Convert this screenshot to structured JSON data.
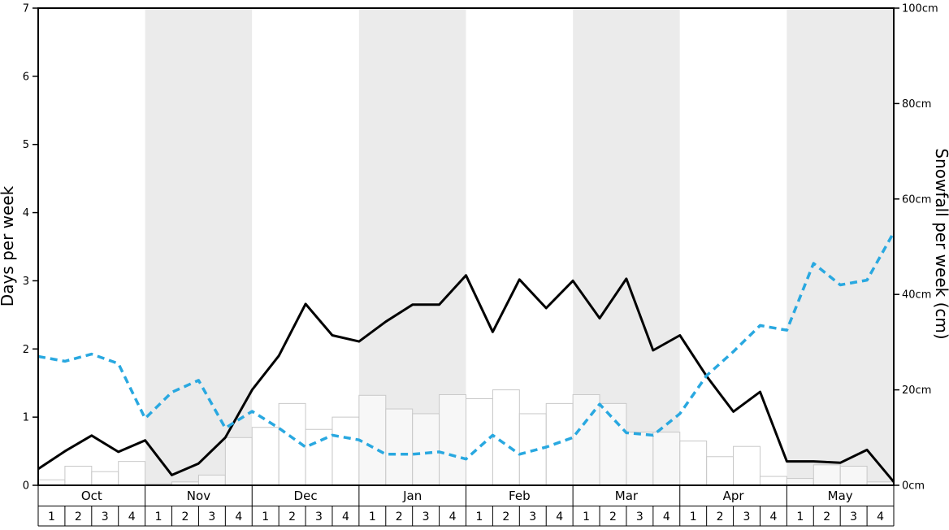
{
  "chart_data": {
    "type": "line",
    "title": "",
    "legend": "none",
    "months": [
      "Oct",
      "Nov",
      "Dec",
      "Jan",
      "Feb",
      "Mar",
      "Apr",
      "May"
    ],
    "weeks_per_month": 4,
    "week_labels": [
      "1",
      "2",
      "3",
      "4"
    ],
    "left_axis": {
      "label": "Days per week",
      "min": 0,
      "max": 7,
      "tick_values": [
        0,
        1,
        2,
        3,
        4,
        5,
        6,
        7
      ],
      "tick_labels": [
        "0",
        "1",
        "2",
        "3",
        "4",
        "5",
        "6",
        "7"
      ]
    },
    "right_axis": {
      "label": "Snowfall per week (cm)",
      "min": 0,
      "max": 100,
      "tick_values": [
        0,
        20,
        40,
        60,
        80,
        100
      ],
      "tick_labels": [
        "0cm",
        "20cm",
        "40cm",
        "60cm",
        "80cm",
        "100cm"
      ]
    },
    "background_bands": {
      "plain": "#ffffff",
      "shaded": "#ebebeb"
    },
    "series": [
      {
        "name": "snowy_days_per_week",
        "type": "line",
        "axis": "left",
        "color": "#000000",
        "line_style": "solid",
        "x_unit": "week_boundaries_oct_to_may",
        "values": [
          0.24,
          0.5,
          0.73,
          0.49,
          0.66,
          0.15,
          0.32,
          0.7,
          1.4,
          1.9,
          2.66,
          2.2,
          2.11,
          2.4,
          2.65,
          2.65,
          3.08,
          2.25,
          3.02,
          2.6,
          3.0,
          2.45,
          3.03,
          1.98,
          2.2,
          1.6,
          1.08,
          1.37,
          0.35,
          0.35,
          0.33,
          0.52,
          0.05
        ]
      },
      {
        "name": "snowfall_per_week_cm",
        "type": "line",
        "axis": "right",
        "color": "#29a8e0",
        "line_style": "dashed",
        "x_unit": "week_boundaries_oct_to_may",
        "values": [
          27,
          26,
          27.5,
          25.5,
          14,
          19.5,
          22,
          12,
          15.5,
          12,
          8,
          10.5,
          9.5,
          6.5,
          6.5,
          7,
          5.5,
          10.5,
          6.5,
          8,
          10,
          17,
          11,
          10.5,
          15,
          23,
          28,
          33.5,
          32.5,
          46.5,
          42,
          43,
          53
        ]
      },
      {
        "name": "weekly_snow_bars",
        "type": "bar",
        "axis": "left",
        "fill": "rgba(255,255,255,0.6)",
        "stroke": "#c8c8c8",
        "values": [
          0.08,
          0.28,
          0.2,
          0.35,
          0.02,
          0.05,
          0.15,
          0.7,
          0.85,
          1.2,
          0.82,
          1.0,
          1.32,
          1.12,
          1.05,
          1.33,
          1.27,
          1.4,
          1.05,
          1.2,
          1.33,
          1.2,
          0.78,
          0.78,
          0.65,
          0.42,
          0.57,
          0.13,
          0.1,
          0.3,
          0.28,
          0.05
        ]
      }
    ]
  }
}
